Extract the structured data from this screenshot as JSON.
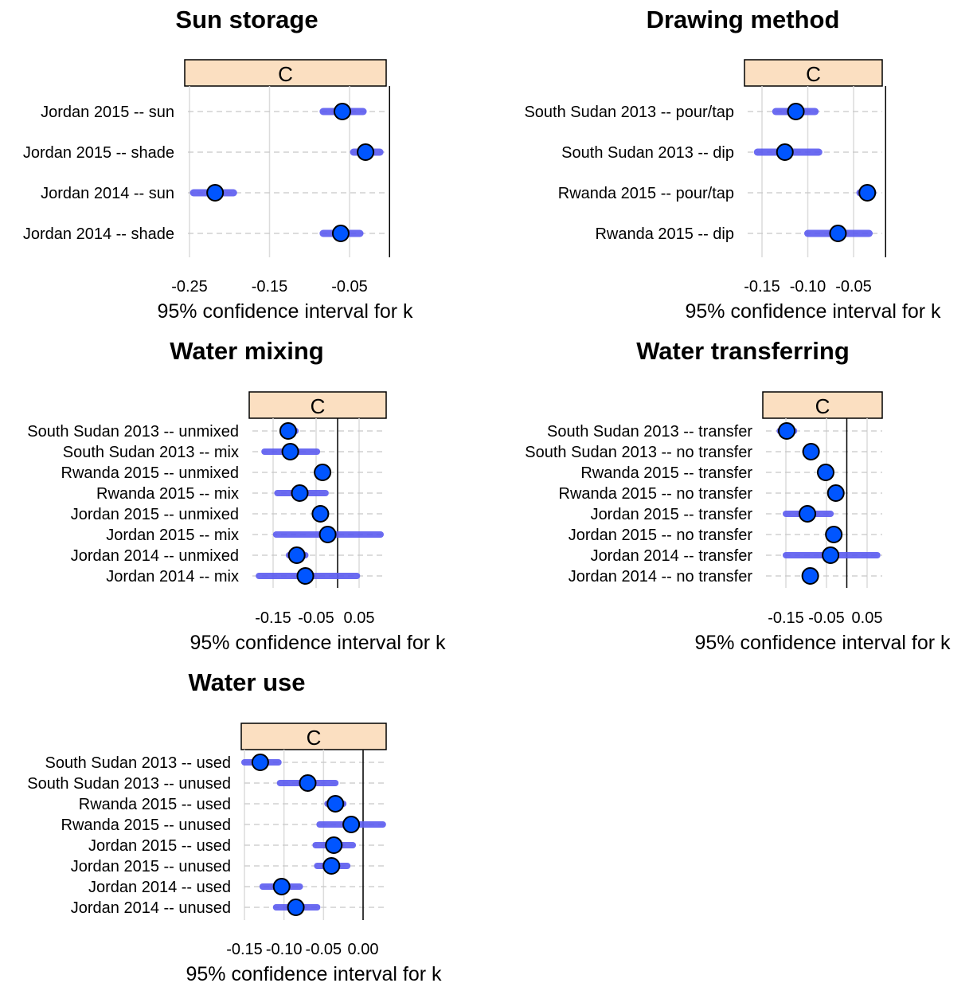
{
  "chart_data": [
    {
      "type": "dot-interval",
      "title": "Sun storage",
      "strip": "C",
      "xlabel": "95% confidence interval for k",
      "xlim": [
        -0.26,
        0.0
      ],
      "ticks": [
        -0.25,
        -0.15,
        -0.05
      ],
      "tick_labels": [
        "-0.25",
        "-0.15",
        "-0.05"
      ],
      "ref_line": 0.0,
      "grid": true,
      "rows": [
        {
          "label": "Jordan 2015 -- sun",
          "estimate": -0.059,
          "low": -0.083,
          "high": -0.033
        },
        {
          "label": "Jordan 2015 -- shade",
          "estimate": -0.03,
          "low": -0.045,
          "high": -0.012
        },
        {
          "label": "Jordan 2014 -- sun",
          "estimate": -0.218,
          "low": -0.245,
          "high": -0.195
        },
        {
          "label": "Jordan 2014 -- shade",
          "estimate": -0.061,
          "low": -0.083,
          "high": -0.037
        }
      ]
    },
    {
      "type": "dot-interval",
      "title": "Drawing method",
      "strip": "C",
      "xlabel": "95% confidence interval for k",
      "xlim": [
        -0.17,
        -0.01
      ],
      "ticks": [
        -0.15,
        -0.1,
        -0.05
      ],
      "tick_labels": [
        "-0.15",
        "-0.10",
        "-0.05"
      ],
      "ref_line": -0.015,
      "grid": true,
      "rows": [
        {
          "label": "South Sudan 2013 -- pour/tap",
          "estimate": -0.113,
          "low": -0.135,
          "high": -0.092
        },
        {
          "label": "South Sudan 2013 -- dip",
          "estimate": -0.125,
          "low": -0.155,
          "high": -0.088
        },
        {
          "label": "Rwanda 2015 -- pour/tap",
          "estimate": -0.035,
          "low": -0.043,
          "high": -0.029
        },
        {
          "label": "Rwanda 2015 -- dip",
          "estimate": -0.067,
          "low": -0.1,
          "high": -0.033
        }
      ]
    },
    {
      "type": "dot-interval",
      "title": "Water mixing",
      "strip": "C",
      "xlabel": "95% confidence interval for k",
      "xlim": [
        -0.195,
        0.085
      ],
      "ticks": [
        -0.15,
        -0.05,
        0.05
      ],
      "tick_labels": [
        "-0.15",
        "-0.05",
        "0.05"
      ],
      "ref_line": 0.0,
      "grid": true,
      "rows": [
        {
          "label": "South Sudan 2013 -- unmixed",
          "estimate": -0.115,
          "low": -0.128,
          "high": -0.098
        },
        {
          "label": "South Sudan 2013 -- mix",
          "estimate": -0.11,
          "low": -0.17,
          "high": -0.048
        },
        {
          "label": "Rwanda 2015 -- unmixed",
          "estimate": -0.035,
          "low": -0.045,
          "high": -0.025
        },
        {
          "label": "Rwanda 2015 -- mix",
          "estimate": -0.088,
          "low": -0.14,
          "high": -0.028
        },
        {
          "label": "Jordan 2015 -- unmixed",
          "estimate": -0.04,
          "low": -0.05,
          "high": -0.03
        },
        {
          "label": "Jordan 2015 -- mix",
          "estimate": -0.023,
          "low": -0.143,
          "high": 0.1
        },
        {
          "label": "Jordan 2014 -- unmixed",
          "estimate": -0.095,
          "low": -0.113,
          "high": -0.075
        },
        {
          "label": "Jordan 2014 -- mix",
          "estimate": -0.075,
          "low": -0.183,
          "high": 0.045
        }
      ]
    },
    {
      "type": "dot-interval",
      "title": "Water transferring",
      "strip": "C",
      "xlabel": "95% confidence interval for k",
      "xlim": [
        -0.195,
        0.085
      ],
      "ticks": [
        -0.15,
        -0.05,
        0.05
      ],
      "tick_labels": [
        "-0.15",
        "-0.05",
        "0.05"
      ],
      "ref_line": 0.0,
      "grid": true,
      "rows": [
        {
          "label": "South Sudan 2013 -- transfer",
          "estimate": -0.148,
          "low": -0.165,
          "high": -0.13
        },
        {
          "label": "South Sudan 2013 -- no transfer",
          "estimate": -0.088,
          "low": -0.102,
          "high": -0.075
        },
        {
          "label": "Rwanda 2015 -- transfer",
          "estimate": -0.052,
          "low": -0.062,
          "high": -0.042
        },
        {
          "label": "Rwanda 2015 -- no transfer",
          "estimate": -0.027,
          "low": -0.033,
          "high": -0.02
        },
        {
          "label": "Jordan 2015 -- transfer",
          "estimate": -0.097,
          "low": -0.15,
          "high": -0.04
        },
        {
          "label": "Jordan 2015 -- no transfer",
          "estimate": -0.032,
          "low": -0.04,
          "high": -0.023
        },
        {
          "label": "Jordan 2014 -- transfer",
          "estimate": -0.04,
          "low": -0.15,
          "high": 0.075
        },
        {
          "label": "Jordan 2014 -- no transfer",
          "estimate": -0.09,
          "low": -0.1,
          "high": -0.078
        }
      ]
    },
    {
      "type": "dot-interval",
      "title": "Water use",
      "strip": "C",
      "xlabel": "95% confidence interval for k",
      "xlim": [
        -0.16,
        0.03
      ],
      "ticks": [
        -0.15,
        -0.1,
        -0.05,
        0.0
      ],
      "tick_labels": [
        "-0.15",
        "-0.10",
        "-0.05",
        "0.00"
      ],
      "ref_line": 0.0,
      "grid": true,
      "rows": [
        {
          "label": "South Sudan 2013 -- used",
          "estimate": -0.13,
          "low": -0.15,
          "high": -0.107
        },
        {
          "label": "South Sudan 2013 -- unused",
          "estimate": -0.07,
          "low": -0.105,
          "high": -0.035
        },
        {
          "label": "Rwanda 2015 -- used",
          "estimate": -0.035,
          "low": -0.045,
          "high": -0.025
        },
        {
          "label": "Rwanda 2015 -- unused",
          "estimate": -0.015,
          "low": -0.055,
          "high": 0.025
        },
        {
          "label": "Jordan 2015 -- used",
          "estimate": -0.037,
          "low": -0.06,
          "high": -0.013
        },
        {
          "label": "Jordan 2015 -- unused",
          "estimate": -0.04,
          "low": -0.058,
          "high": -0.02
        },
        {
          "label": "Jordan 2014 -- used",
          "estimate": -0.103,
          "low": -0.127,
          "high": -0.08
        },
        {
          "label": "Jordan 2014 -- unused",
          "estimate": -0.085,
          "low": -0.11,
          "high": -0.058
        }
      ]
    }
  ]
}
